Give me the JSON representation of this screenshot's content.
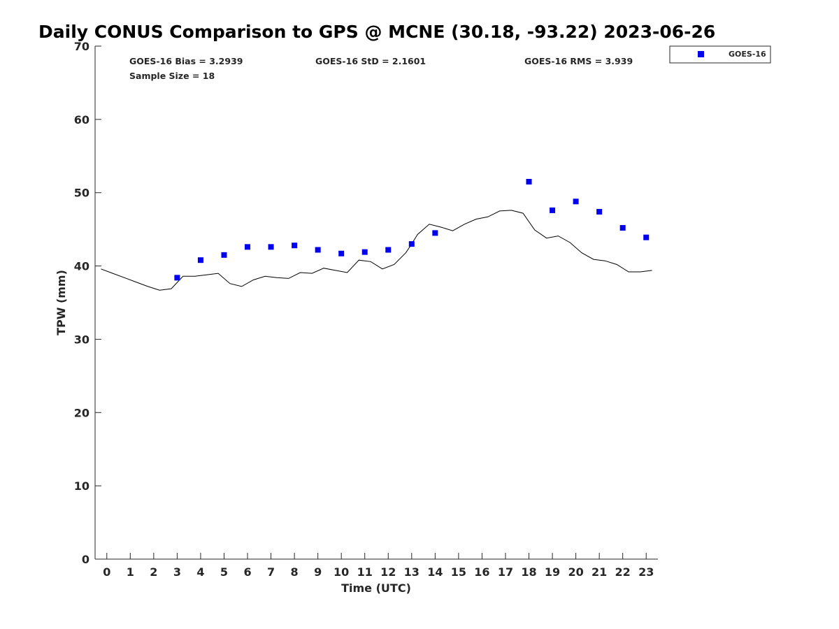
{
  "chart_data": {
    "type": "scatter",
    "title": "Daily CONUS Comparison to GPS @ MCNE (30.18, -93.22) 2023-06-26",
    "xlabel": "Time (UTC)",
    "ylabel": "TPW (mm)",
    "xlim": [
      -0.5,
      23.5
    ],
    "ylim": [
      0,
      70
    ],
    "x_ticks": [
      0,
      1,
      2,
      3,
      4,
      5,
      6,
      7,
      8,
      9,
      10,
      11,
      12,
      13,
      14,
      15,
      16,
      17,
      18,
      19,
      20,
      21,
      22,
      23
    ],
    "y_ticks": [
      0,
      10,
      20,
      30,
      40,
      50,
      60,
      70
    ],
    "grid": false,
    "legend_position": "top-right, outside axes",
    "stats": {
      "bias": "GOES-16 Bias = 3.2939",
      "std": "GOES-16 StD = 2.1601",
      "rms": "GOES-16 RMS = 3.939",
      "sample_size": "Sample Size = 18"
    },
    "series": [
      {
        "name": "GOES-16",
        "kind": "scatter",
        "marker": "square",
        "color": "#0000ee",
        "x": [
          3,
          4,
          5,
          6,
          7,
          8,
          9,
          10,
          11,
          12,
          13,
          14,
          18,
          19,
          20,
          21,
          22,
          23
        ],
        "y": [
          38.4,
          40.8,
          41.5,
          42.6,
          42.6,
          42.8,
          42.2,
          41.7,
          41.9,
          42.2,
          43.0,
          44.5,
          51.5,
          47.6,
          48.8,
          47.4,
          45.2,
          43.9
        ]
      },
      {
        "kind": "line",
        "color": "#000000",
        "x": [
          -0.25,
          0.25,
          0.75,
          1.25,
          1.75,
          2.25,
          2.75,
          3.25,
          3.75,
          4.25,
          4.75,
          5.25,
          5.75,
          6.25,
          6.75,
          7.25,
          7.75,
          8.25,
          8.75,
          9.25,
          9.75,
          10.25,
          10.75,
          11.25,
          11.75,
          12.25,
          12.75,
          13.0,
          13.25,
          13.75,
          14.25,
          14.75,
          15.25,
          15.75,
          16.25,
          16.75,
          17.25,
          17.75,
          18.25,
          18.75,
          19.25,
          19.75,
          20.25,
          20.75,
          21.25,
          21.75,
          22.25,
          22.75,
          23.25
        ],
        "y": [
          39.6,
          39.0,
          38.4,
          37.8,
          37.2,
          36.7,
          36.9,
          38.6,
          38.6,
          38.8,
          39.0,
          37.6,
          37.2,
          38.1,
          38.6,
          38.4,
          38.3,
          39.1,
          39.0,
          39.7,
          39.4,
          39.1,
          40.8,
          40.6,
          39.6,
          40.2,
          41.8,
          43.0,
          44.3,
          45.7,
          45.3,
          44.8,
          45.7,
          46.4,
          46.7,
          47.5,
          47.6,
          47.2,
          44.9,
          43.8,
          44.1,
          43.2,
          41.8,
          40.9,
          40.7,
          40.2,
          39.2,
          39.2,
          39.4
        ]
      }
    ]
  }
}
